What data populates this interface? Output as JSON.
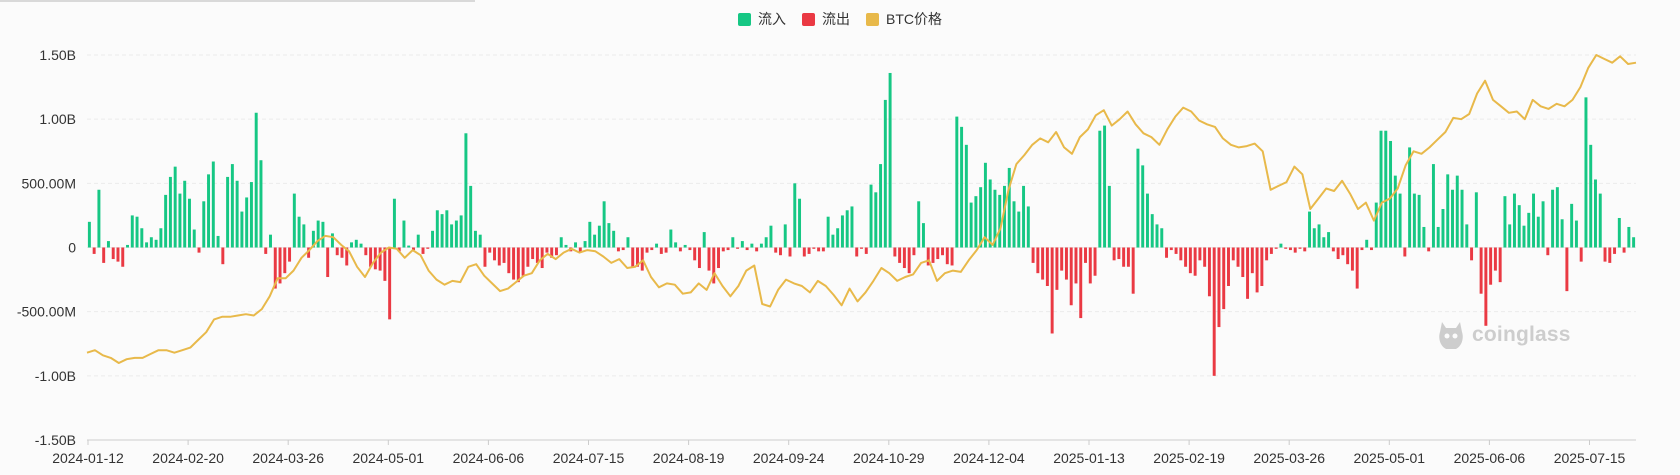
{
  "legend": [
    {
      "label": "流入",
      "color": "#16c784"
    },
    {
      "label": "流出",
      "color": "#ea3943"
    },
    {
      "label": "BTC价格",
      "color": "#e8b94a"
    }
  ],
  "watermark": {
    "text": "coinglass",
    "icon": "coinglass-logo-icon"
  },
  "colors": {
    "inflow": "#16c784",
    "outflow": "#ea3943",
    "price": "#e8b94a",
    "grid": "#ebebeb",
    "axis_text": "#333333"
  },
  "chart_data": {
    "type": "bar",
    "title": "",
    "xlabel": "",
    "ylabel": "",
    "ylim": [
      -1500000000,
      1500000000
    ],
    "y_ticks": [
      {
        "value": 1500000000,
        "label": "1.50B"
      },
      {
        "value": 1000000000,
        "label": "1.00B"
      },
      {
        "value": 500000000,
        "label": "500.00M"
      },
      {
        "value": 0,
        "label": "0"
      },
      {
        "value": -500000000,
        "label": "-500.00M"
      },
      {
        "value": -1000000000,
        "label": "-1.00B"
      },
      {
        "value": -1500000000,
        "label": "-1.50B"
      }
    ],
    "x_tick_labels": [
      "2024-01-12",
      "2024-02-20",
      "2024-03-26",
      "2024-05-01",
      "2024-06-06",
      "2024-07-15",
      "2024-08-19",
      "2024-09-24",
      "2024-10-29",
      "2024-12-04",
      "2025-01-13",
      "2025-02-19",
      "2025-03-26",
      "2025-05-01",
      "2025-06-06",
      "2025-07-15"
    ],
    "grid": true,
    "legend_position": "top-center",
    "series": [
      {
        "name": "流入",
        "kind": "bar",
        "unit": "USD",
        "values": [
          200000000,
          -50000000,
          450000000,
          -120000000,
          50000000,
          -90000000,
          -110000000,
          -150000000,
          20000000,
          250000000,
          240000000,
          150000000,
          40000000,
          80000000,
          60000000,
          150000000,
          410000000,
          550000000,
          630000000,
          420000000,
          520000000,
          380000000,
          140000000,
          -40000000,
          360000000,
          570000000,
          670000000,
          90000000,
          -130000000,
          550000000,
          650000000,
          520000000,
          280000000,
          390000000,
          510000000,
          1050000000,
          680000000,
          -50000000,
          100000000,
          -320000000,
          -280000000,
          -200000000,
          -110000000,
          420000000,
          240000000,
          180000000,
          -80000000,
          130000000,
          210000000,
          200000000,
          -230000000,
          110000000,
          -60000000,
          -80000000,
          -140000000,
          40000000,
          60000000,
          30000000,
          -60000000,
          -150000000,
          -170000000,
          -180000000,
          -260000000,
          -560000000,
          380000000,
          -30000000,
          210000000,
          15000000,
          -20000000,
          100000000,
          -50000000,
          -10000000,
          130000000,
          290000000,
          260000000,
          290000000,
          180000000,
          210000000,
          250000000,
          890000000,
          480000000,
          130000000,
          100000000,
          -150000000,
          -40000000,
          -100000000,
          -140000000,
          -120000000,
          -200000000,
          -250000000,
          -270000000,
          -220000000,
          -150000000,
          -90000000,
          -120000000,
          -160000000,
          -40000000,
          -80000000,
          -60000000,
          80000000,
          20000000,
          -30000000,
          40000000,
          -40000000,
          50000000,
          200000000,
          100000000,
          170000000,
          360000000,
          190000000,
          130000000,
          -30000000,
          -20000000,
          80000000,
          -160000000,
          -150000000,
          -180000000,
          -40000000,
          -20000000,
          30000000,
          -50000000,
          -40000000,
          140000000,
          40000000,
          -30000000,
          20000000,
          -20000000,
          -100000000,
          -160000000,
          120000000,
          -180000000,
          -280000000,
          -160000000,
          -30000000,
          -20000000,
          80000000,
          -10000000,
          50000000,
          -20000000,
          30000000,
          -30000000,
          30000000,
          80000000,
          170000000,
          -40000000,
          -60000000,
          180000000,
          -70000000,
          500000000,
          380000000,
          -70000000,
          -50000000,
          -10000000,
          -30000000,
          -30000000,
          240000000,
          100000000,
          150000000,
          250000000,
          290000000,
          320000000,
          -70000000,
          -10000000,
          -50000000,
          490000000,
          430000000,
          650000000,
          1150000000,
          1360000000,
          -70000000,
          -120000000,
          -160000000,
          -200000000,
          -60000000,
          360000000,
          190000000,
          -140000000,
          -120000000,
          -90000000,
          -60000000,
          -130000000,
          -140000000,
          1020000000,
          940000000,
          800000000,
          350000000,
          400000000,
          470000000,
          660000000,
          530000000,
          450000000,
          410000000,
          480000000,
          620000000,
          360000000,
          280000000,
          480000000,
          320000000,
          -120000000,
          -200000000,
          -250000000,
          -300000000,
          -670000000,
          -330000000,
          -180000000,
          -250000000,
          -450000000,
          -280000000,
          -550000000,
          -120000000,
          -280000000,
          -220000000,
          910000000,
          950000000,
          480000000,
          -100000000,
          -90000000,
          -150000000,
          -150000000,
          -360000000,
          770000000,
          640000000,
          420000000,
          260000000,
          180000000,
          150000000,
          -80000000,
          -20000000,
          -50000000,
          -100000000,
          -150000000,
          -200000000,
          -220000000,
          -100000000,
          -150000000,
          -380000000,
          -1000000000,
          -620000000,
          -480000000,
          -300000000,
          -100000000,
          -150000000,
          -230000000,
          -400000000,
          -200000000,
          -350000000,
          -300000000,
          -100000000,
          -50000000,
          -10000000,
          30000000,
          -10000000,
          -20000000,
          -40000000,
          -10000000,
          -30000000,
          280000000,
          150000000,
          180000000,
          80000000,
          120000000,
          -30000000,
          -90000000,
          -60000000,
          -130000000,
          -180000000,
          -320000000,
          -20000000,
          60000000,
          -20000000,
          350000000,
          910000000,
          910000000,
          830000000,
          560000000,
          420000000,
          -70000000,
          780000000,
          420000000,
          410000000,
          160000000,
          -30000000,
          650000000,
          160000000,
          300000000,
          570000000,
          450000000,
          560000000,
          450000000,
          180000000,
          -100000000,
          430000000,
          -360000000,
          -610000000,
          -290000000,
          -180000000,
          -270000000,
          400000000,
          180000000,
          420000000,
          330000000,
          170000000,
          270000000,
          420000000,
          240000000,
          360000000,
          -60000000,
          450000000,
          470000000,
          220000000,
          -340000000,
          340000000,
          210000000,
          -110000000,
          1170000000,
          800000000,
          530000000,
          420000000,
          -110000000,
          -120000000,
          -50000000,
          230000000,
          -40000000,
          160000000,
          80000000
        ]
      },
      {
        "name": "BTC价格",
        "kind": "line",
        "unit": "relative",
        "values": [
          -820000000,
          -800000000,
          -840000000,
          -860000000,
          -900000000,
          -870000000,
          -860000000,
          -860000000,
          -830000000,
          -800000000,
          -800000000,
          -820000000,
          -800000000,
          -780000000,
          -720000000,
          -660000000,
          -560000000,
          -540000000,
          -540000000,
          -530000000,
          -520000000,
          -530000000,
          -480000000,
          -380000000,
          -240000000,
          -240000000,
          -180000000,
          -80000000,
          -20000000,
          50000000,
          90000000,
          80000000,
          20000000,
          -30000000,
          -150000000,
          -230000000,
          -120000000,
          -40000000,
          0,
          -10000000,
          -80000000,
          -20000000,
          -60000000,
          -180000000,
          -250000000,
          -290000000,
          -260000000,
          -270000000,
          -150000000,
          -130000000,
          -220000000,
          -280000000,
          -340000000,
          -320000000,
          -270000000,
          -220000000,
          -200000000,
          -100000000,
          -50000000,
          -90000000,
          -40000000,
          -10000000,
          -40000000,
          -20000000,
          -30000000,
          -70000000,
          -120000000,
          -90000000,
          -160000000,
          -150000000,
          -100000000,
          -230000000,
          -310000000,
          -280000000,
          -290000000,
          -360000000,
          -350000000,
          -280000000,
          -330000000,
          -200000000,
          -300000000,
          -380000000,
          -300000000,
          -180000000,
          -140000000,
          -440000000,
          -460000000,
          -330000000,
          -250000000,
          -280000000,
          -300000000,
          -350000000,
          -260000000,
          -300000000,
          -370000000,
          -450000000,
          -320000000,
          -420000000,
          -350000000,
          -260000000,
          -160000000,
          -200000000,
          -260000000,
          -230000000,
          -210000000,
          -120000000,
          -100000000,
          -260000000,
          -200000000,
          -180000000,
          -190000000,
          -100000000,
          -20000000,
          80000000,
          20000000,
          150000000,
          450000000,
          650000000,
          720000000,
          800000000,
          850000000,
          820000000,
          900000000,
          780000000,
          730000000,
          860000000,
          920000000,
          1030000000,
          1070000000,
          950000000,
          1000000000,
          1060000000,
          960000000,
          890000000,
          860000000,
          800000000,
          920000000,
          1020000000,
          1090000000,
          1060000000,
          990000000,
          960000000,
          940000000,
          850000000,
          800000000,
          780000000,
          790000000,
          810000000,
          750000000,
          450000000,
          480000000,
          510000000,
          630000000,
          570000000,
          300000000,
          380000000,
          460000000,
          440000000,
          520000000,
          420000000,
          300000000,
          350000000,
          210000000,
          350000000,
          380000000,
          460000000,
          640000000,
          750000000,
          730000000,
          780000000,
          840000000,
          900000000,
          1010000000,
          1000000000,
          1040000000,
          1200000000,
          1300000000,
          1150000000,
          1100000000,
          1050000000,
          1060000000,
          1000000000,
          1150000000,
          1100000000,
          1080000000,
          1120000000,
          1100000000,
          1150000000,
          1250000000,
          1400000000,
          1500000000,
          1470000000,
          1440000000,
          1490000000,
          1430000000,
          1440000000
        ]
      }
    ]
  }
}
